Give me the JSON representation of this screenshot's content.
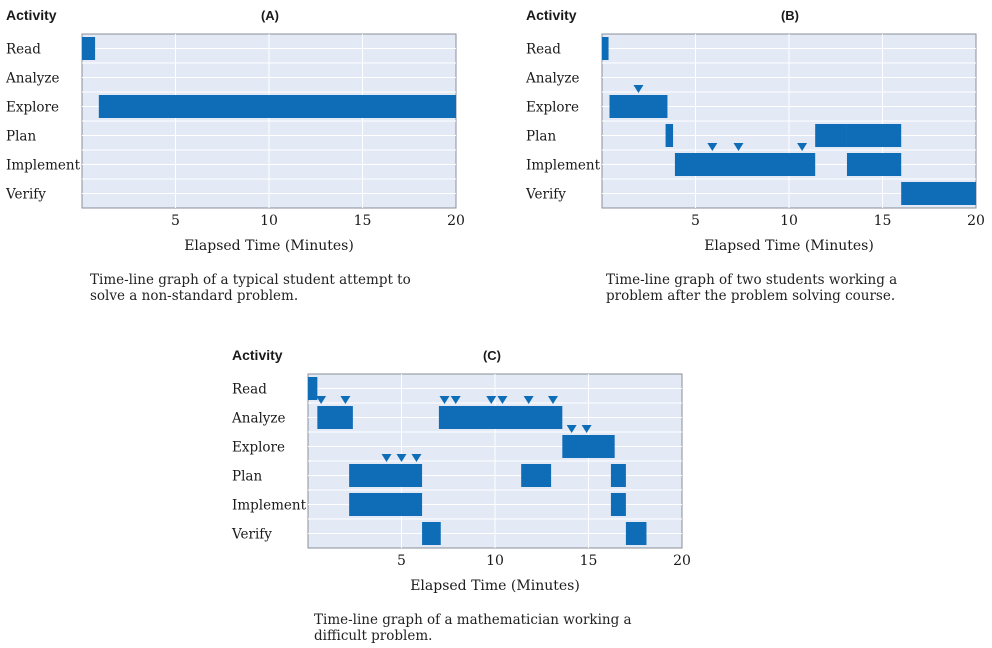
{
  "colors": {
    "plot_bg": "#e3e9f5",
    "grid": "#ffffff",
    "bar": "#0f6db8",
    "text": "#1a1a1a"
  },
  "chart_data": [
    {
      "type": "gantt",
      "title": "(A)",
      "row_header": "Activity",
      "xlabel": "Elapsed Time (Minutes)",
      "xlim": [
        0,
        20
      ],
      "xticks": [
        5,
        10,
        15,
        20
      ],
      "categories": [
        "Read",
        "Analyze",
        "Explore",
        "Plan",
        "Implement",
        "Verify"
      ],
      "caption": "Time-line graph of a typical student attempt to\nsolve a non-standard problem.",
      "bars": [
        {
          "activity": "Read",
          "start": 0,
          "end": 0.7
        },
        {
          "activity": "Explore",
          "start": 0.9,
          "end": 20
        }
      ],
      "markers": []
    },
    {
      "type": "gantt",
      "title": "(B)",
      "row_header": "Activity",
      "xlabel": "Elapsed Time (Minutes)",
      "xlim": [
        0,
        20
      ],
      "xticks": [
        5,
        10,
        15,
        20
      ],
      "categories": [
        "Read",
        "Analyze",
        "Explore",
        "Plan",
        "Implement",
        "Verify"
      ],
      "caption": "Time-line graph of two students working a\nproblem after the problem solving course.",
      "bars": [
        {
          "activity": "Read",
          "start": 0,
          "end": 0.35
        },
        {
          "activity": "Explore",
          "start": 0.4,
          "end": 3.5
        },
        {
          "activity": "Plan",
          "start": 3.4,
          "end": 3.8
        },
        {
          "activity": "Implement",
          "start": 3.9,
          "end": 11.4
        },
        {
          "activity": "Plan",
          "start": 11.4,
          "end": 13.1
        },
        {
          "activity": "Plan",
          "start": 13.1,
          "end": 16.0
        },
        {
          "activity": "Implement",
          "start": 13.1,
          "end": 16.0
        },
        {
          "activity": "Verify",
          "start": 16.0,
          "end": 20
        }
      ],
      "markers": [
        {
          "activity": "Explore",
          "x": 1.95
        },
        {
          "activity": "Implement",
          "x": 5.9
        },
        {
          "activity": "Implement",
          "x": 7.3
        },
        {
          "activity": "Implement",
          "x": 10.7
        }
      ]
    },
    {
      "type": "gantt",
      "title": "(C)",
      "row_header": "Activity",
      "xlabel": "Elapsed Time (Minutes)",
      "xlim": [
        0,
        20
      ],
      "xticks": [
        5,
        10,
        15,
        20
      ],
      "categories": [
        "Read",
        "Analyze",
        "Explore",
        "Plan",
        "Implement",
        "Verify"
      ],
      "caption": "Time-line graph of a mathematician working a\ndifficult problem.",
      "bars": [
        {
          "activity": "Read",
          "start": 0,
          "end": 0.5
        },
        {
          "activity": "Analyze",
          "start": 0.5,
          "end": 2.4
        },
        {
          "activity": "Plan",
          "start": 2.2,
          "end": 6.1
        },
        {
          "activity": "Implement",
          "start": 2.2,
          "end": 6.1
        },
        {
          "activity": "Verify",
          "start": 6.1,
          "end": 7.1
        },
        {
          "activity": "Analyze",
          "start": 7.0,
          "end": 13.6
        },
        {
          "activity": "Plan",
          "start": 11.4,
          "end": 13.0
        },
        {
          "activity": "Explore",
          "start": 13.6,
          "end": 16.4
        },
        {
          "activity": "Plan",
          "start": 16.2,
          "end": 17.0
        },
        {
          "activity": "Implement",
          "start": 16.2,
          "end": 17.0
        },
        {
          "activity": "Verify",
          "start": 17.0,
          "end": 18.1
        }
      ],
      "markers": [
        {
          "activity": "Analyze",
          "x": 0.7
        },
        {
          "activity": "Analyze",
          "x": 2.0
        },
        {
          "activity": "Plan",
          "x": 4.2
        },
        {
          "activity": "Plan",
          "x": 5.0
        },
        {
          "activity": "Plan",
          "x": 5.8
        },
        {
          "activity": "Analyze",
          "x": 7.3
        },
        {
          "activity": "Analyze",
          "x": 7.9
        },
        {
          "activity": "Analyze",
          "x": 9.8
        },
        {
          "activity": "Analyze",
          "x": 10.4
        },
        {
          "activity": "Analyze",
          "x": 11.8
        },
        {
          "activity": "Analyze",
          "x": 13.1
        },
        {
          "activity": "Explore",
          "x": 14.1
        },
        {
          "activity": "Explore",
          "x": 14.9
        }
      ]
    }
  ]
}
